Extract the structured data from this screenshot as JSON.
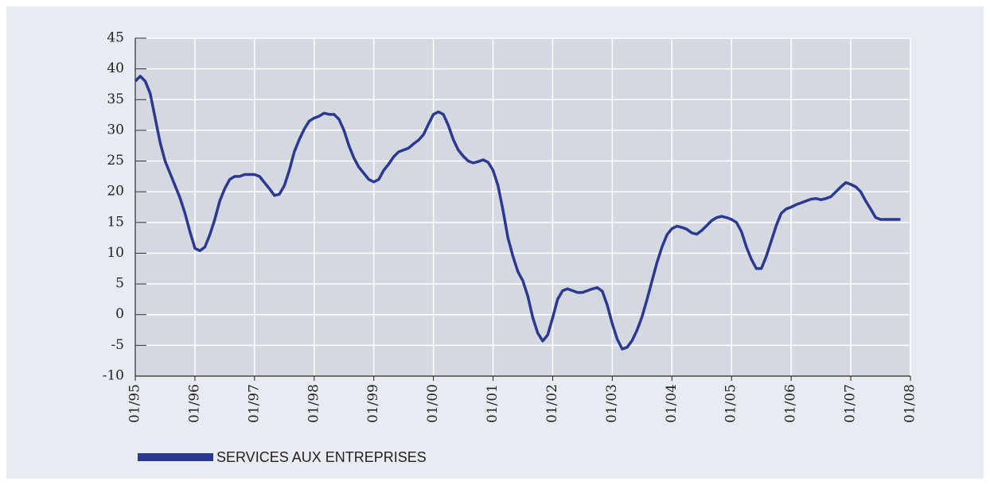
{
  "chart_data": {
    "type": "line",
    "x": [
      "01/95",
      "02/95",
      "03/95",
      "04/95",
      "05/95",
      "06/95",
      "07/95",
      "08/95",
      "09/95",
      "10/95",
      "11/95",
      "12/95",
      "01/96",
      "02/96",
      "03/96",
      "04/96",
      "05/96",
      "06/96",
      "07/96",
      "08/96",
      "09/96",
      "10/96",
      "11/96",
      "12/96",
      "01/97",
      "02/97",
      "03/97",
      "04/97",
      "05/97",
      "06/97",
      "07/97",
      "08/97",
      "09/97",
      "10/97",
      "11/97",
      "12/97",
      "01/98",
      "02/98",
      "03/98",
      "04/98",
      "05/98",
      "06/98",
      "07/98",
      "08/98",
      "09/98",
      "10/98",
      "11/98",
      "12/98",
      "01/99",
      "02/99",
      "03/99",
      "04/99",
      "05/99",
      "06/99",
      "07/99",
      "08/99",
      "09/99",
      "10/99",
      "11/99",
      "12/99",
      "01/00",
      "02/00",
      "03/00",
      "04/00",
      "05/00",
      "06/00",
      "07/00",
      "08/00",
      "09/00",
      "10/00",
      "11/00",
      "12/00",
      "01/01",
      "02/01",
      "03/01",
      "04/01",
      "05/01",
      "06/01",
      "07/01",
      "08/01",
      "09/01",
      "10/01",
      "11/01",
      "12/01",
      "01/02",
      "02/02",
      "03/02",
      "04/02",
      "05/02",
      "06/02",
      "07/02",
      "08/02",
      "09/02",
      "10/02",
      "11/02",
      "12/02",
      "01/03",
      "02/03",
      "03/03",
      "04/03",
      "05/03",
      "06/03",
      "07/03",
      "08/03",
      "09/03",
      "10/03",
      "11/03",
      "12/03",
      "01/04",
      "02/04",
      "03/04",
      "04/04",
      "05/04",
      "06/04",
      "07/04",
      "08/04",
      "09/04",
      "10/04",
      "11/04",
      "12/04",
      "01/05",
      "02/05",
      "03/05",
      "04/05",
      "05/05",
      "06/05",
      "07/05",
      "08/05",
      "09/05",
      "10/05",
      "11/05",
      "12/05",
      "01/06",
      "02/06",
      "03/06",
      "04/06",
      "05/06",
      "06/06",
      "07/06",
      "08/06",
      "09/06",
      "10/06",
      "11/06",
      "12/06",
      "01/07",
      "02/07",
      "03/07",
      "04/07",
      "05/07",
      "06/07",
      "07/07",
      "08/07",
      "09/07",
      "10/07",
      "11/07"
    ],
    "series": [
      {
        "name": "SERVICES AUX ENTREPRISES",
        "color": "#2b3990",
        "values": [
          38,
          38.8,
          38,
          36,
          32,
          28,
          25,
          23,
          21,
          19,
          16.5,
          13.5,
          10.8,
          10.4,
          11,
          13,
          15.5,
          18.5,
          20.5,
          22,
          22.5,
          22.5,
          22.8,
          22.8,
          22.8,
          22.5,
          21.5,
          20.5,
          19.4,
          19.6,
          21,
          23.5,
          26.5,
          28.5,
          30.2,
          31.5,
          32,
          32.3,
          32.8,
          32.6,
          32.6,
          31.8,
          30,
          27.5,
          25.5,
          24,
          23,
          22,
          21.6,
          22,
          23.5,
          24.5,
          25.7,
          26.5,
          26.8,
          27.1,
          27.8,
          28.4,
          29.3,
          31,
          32.6,
          33,
          32.6,
          30.8,
          28.5,
          26.8,
          25.8,
          25,
          24.7,
          24.9,
          25.2,
          24.8,
          23.5,
          21,
          17,
          12.5,
          9.5,
          7,
          5.5,
          3,
          -0.5,
          -3,
          -4.3,
          -3.3,
          -0.5,
          2.5,
          3.9,
          4.2,
          3.9,
          3.6,
          3.6,
          3.9,
          4.2,
          4.4,
          3.8,
          1.5,
          -1.5,
          -4,
          -5.6,
          -5.3,
          -4.2,
          -2.5,
          -0.3,
          2.5,
          5.5,
          8.5,
          11,
          13,
          14,
          14.4,
          14.2,
          13.9,
          13.3,
          13.1,
          13.7,
          14.5,
          15.3,
          15.8,
          16,
          15.8,
          15.5,
          15,
          13.5,
          11,
          9,
          7.5,
          7.5,
          9.5,
          12,
          14.5,
          16.5,
          17.2,
          17.5,
          17.9,
          18.2,
          18.5,
          18.8,
          18.9,
          18.7,
          18.9,
          19.2,
          20,
          20.8,
          21.5,
          21.2,
          20.8,
          20,
          18.5,
          17.2,
          15.8,
          15.5,
          15.5,
          15.5,
          15.5,
          15.5
        ]
      }
    ],
    "xlim": [
      "01/95",
      "01/08"
    ],
    "xticks": [
      "01/95",
      "01/96",
      "01/97",
      "01/98",
      "01/99",
      "01/00",
      "01/01",
      "01/02",
      "01/03",
      "01/04",
      "01/05",
      "01/06",
      "01/07",
      "01/08"
    ],
    "ylim": [
      -10,
      45
    ],
    "yticks": [
      -10,
      -5,
      0,
      5,
      10,
      15,
      20,
      25,
      30,
      35,
      40,
      45
    ],
    "grid": true
  }
}
